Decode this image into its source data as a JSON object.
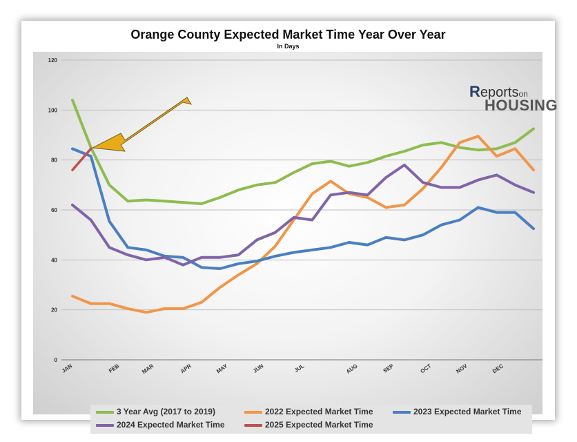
{
  "chart_data": {
    "type": "line",
    "title": "Orange County Expected Market Time Year Over Year",
    "subtitle": "In Days",
    "xlabel": "",
    "ylabel": "",
    "ylim": [
      0,
      120
    ],
    "yticks": [
      0,
      20,
      40,
      60,
      80,
      100,
      120
    ],
    "month_labels": [
      "JAN",
      "FEB",
      "MAR",
      "APR",
      "MAY",
      "JUN",
      "JUL",
      "AUG",
      "SEP",
      "OCT",
      "NOV",
      "DEC"
    ],
    "grid": true,
    "legend_position": "bottom",
    "series": [
      {
        "name": "3 Year Avg (2017 to 2019)",
        "color": "#8fbc4f",
        "x": [
          0,
          1,
          2,
          3,
          4,
          5,
          6,
          7,
          8,
          9,
          10,
          11,
          12,
          13,
          14,
          15,
          16,
          17,
          18,
          19,
          20,
          21,
          22,
          23,
          24,
          25
        ],
        "values": [
          104,
          85,
          70,
          63.5,
          64,
          63.5,
          63,
          62.5,
          65,
          68,
          70,
          71,
          75,
          78.5,
          79.5,
          77.5,
          79,
          81.5,
          83.5,
          86,
          87,
          85,
          84,
          84.5,
          87,
          92.5
        ]
      },
      {
        "name": "2022 Expected Market Time",
        "color": "#f0964a",
        "x": [
          0,
          1,
          2,
          3,
          4,
          5,
          6,
          7,
          8,
          9,
          10,
          11,
          12,
          13,
          14,
          15,
          16,
          17,
          18,
          19,
          20,
          21,
          22,
          23,
          24,
          25
        ],
        "values": [
          25.5,
          22.5,
          22.5,
          20.5,
          19,
          20.5,
          20.5,
          23,
          29,
          34,
          38.5,
          45.5,
          56,
          66.5,
          71.5,
          66.5,
          65,
          61,
          62,
          68.5,
          77,
          87,
          89.5,
          81.5,
          84.5,
          76
        ]
      },
      {
        "name": "2023 Expected Market Time",
        "color": "#4a7fc1",
        "x": [
          0,
          1,
          2,
          3,
          4,
          5,
          6,
          7,
          8,
          9,
          10,
          11,
          12,
          13,
          14,
          15,
          16,
          17,
          18,
          19,
          20,
          21,
          22,
          23,
          24,
          25
        ],
        "values": [
          84.5,
          81.5,
          55.5,
          45,
          44,
          41.5,
          41,
          37,
          36.5,
          38.5,
          39.5,
          41.5,
          43,
          44,
          45,
          47,
          46,
          49,
          48,
          50,
          54,
          56,
          61,
          59,
          59,
          52.5
        ]
      },
      {
        "name": "2024 Expected Market Time",
        "color": "#8064a8",
        "x": [
          0,
          1,
          2,
          3,
          4,
          5,
          6,
          7,
          8,
          9,
          10,
          11,
          12,
          13,
          14,
          15,
          16,
          17,
          18,
          19,
          20,
          21,
          22,
          23,
          24,
          25
        ],
        "values": [
          62,
          56,
          45,
          42,
          40,
          41,
          38,
          41,
          41,
          42,
          48,
          51,
          57,
          56,
          66,
          67,
          66,
          73,
          78,
          71,
          69,
          69,
          72,
          74,
          70,
          67
        ]
      },
      {
        "name": "2025 Expected Market Time",
        "color": "#c0504d",
        "x": [
          0,
          1
        ],
        "values": [
          76,
          84.5
        ]
      }
    ]
  },
  "logo": {
    "line1_initial": "R",
    "line1_rest": "eports",
    "line1_small": "on",
    "line2": "HOUSING"
  }
}
